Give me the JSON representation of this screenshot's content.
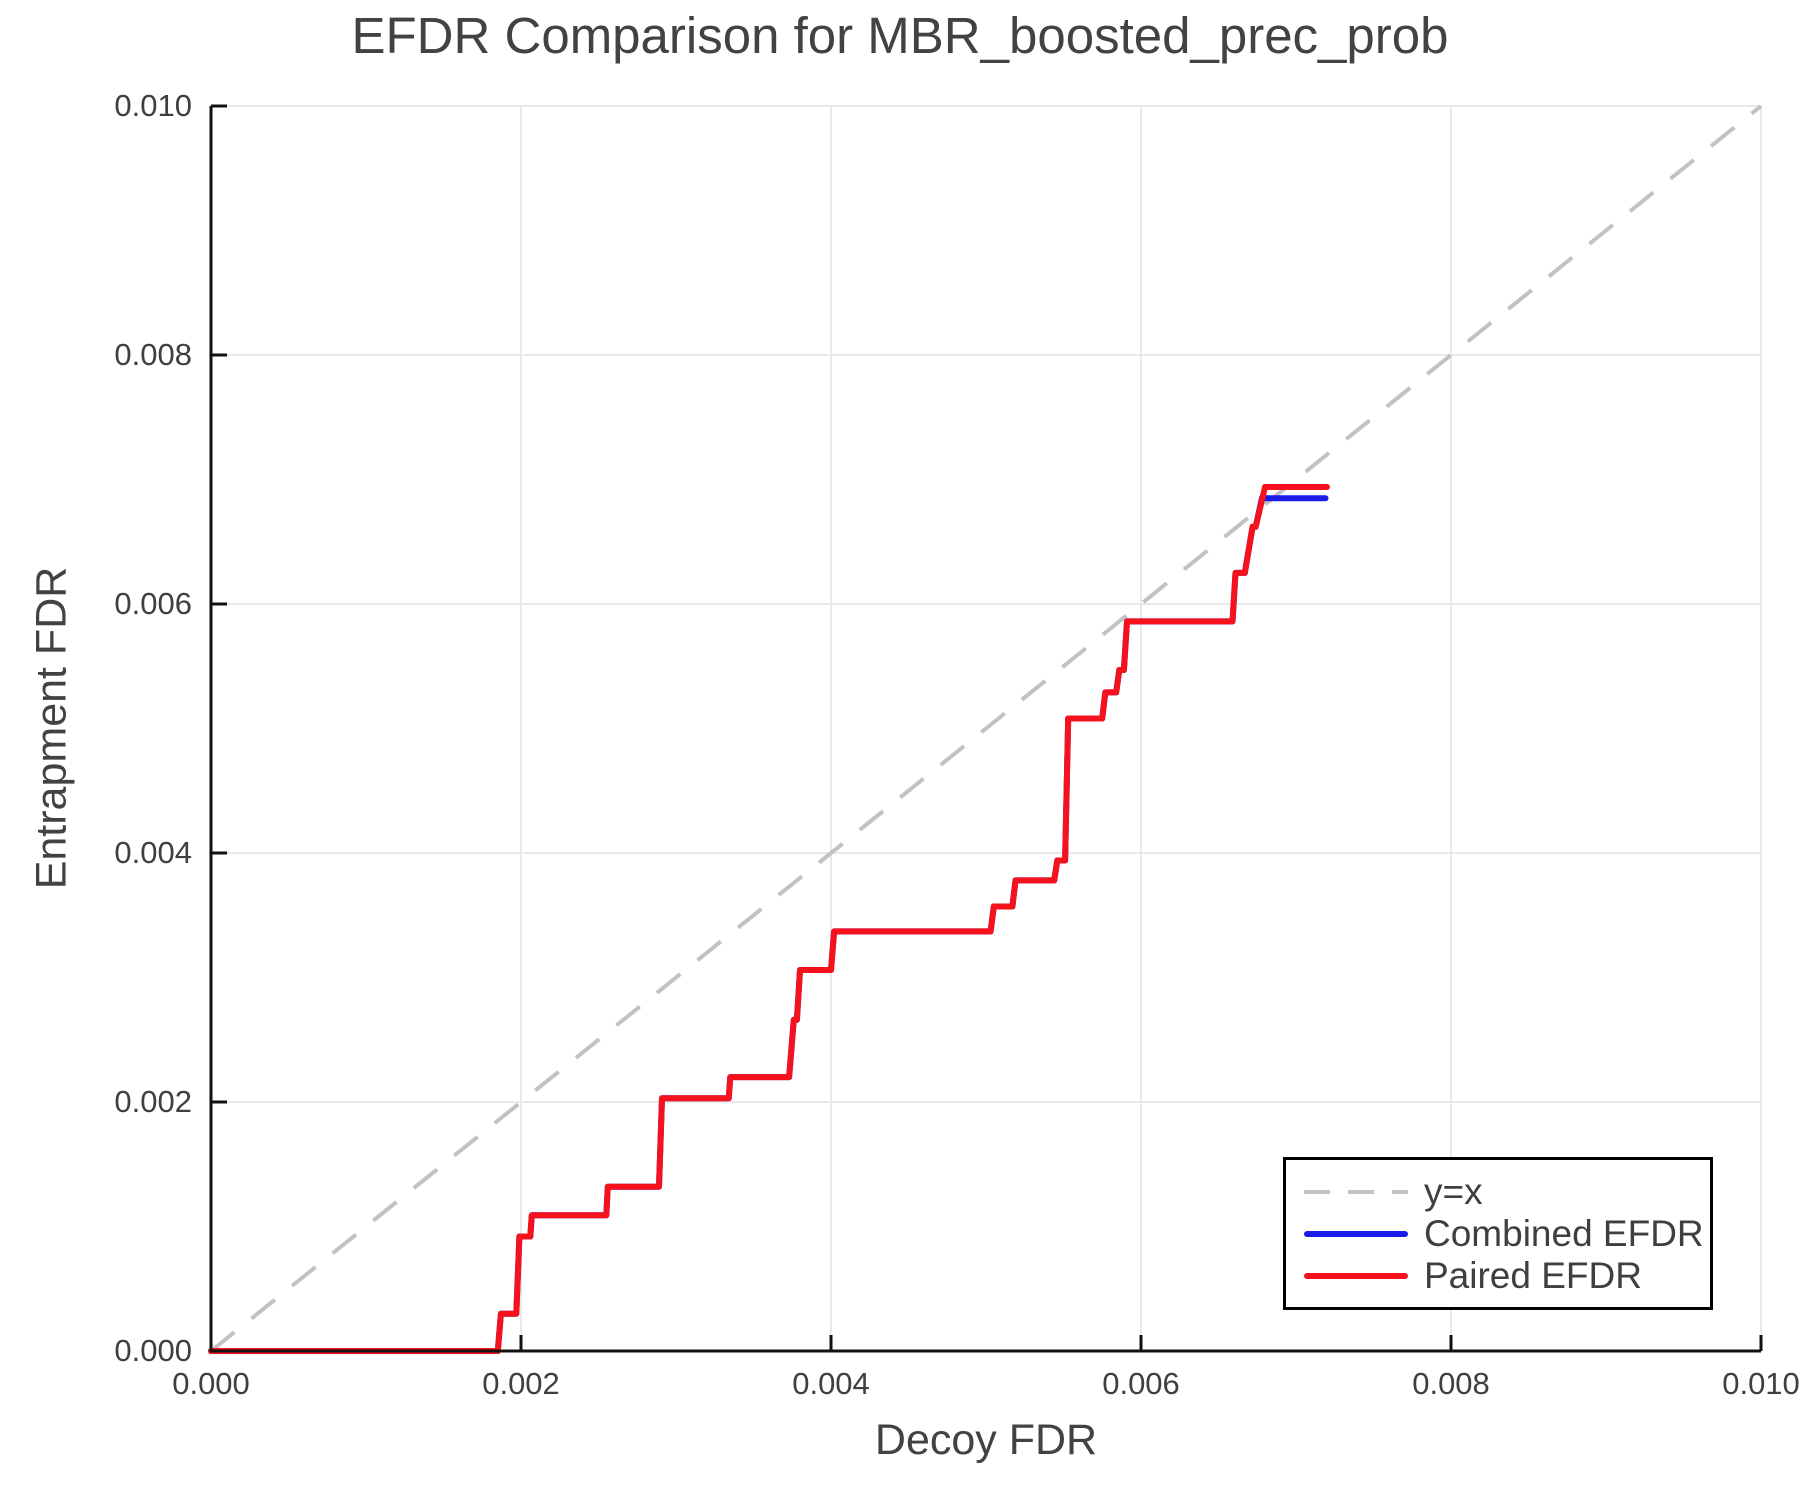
{
  "chart_data": {
    "type": "line",
    "title": "EFDR Comparison for MBR_boosted_prec_prob",
    "xlabel": "Decoy FDR",
    "ylabel": "Entrapment FDR",
    "xlim": [
      0.0,
      0.01
    ],
    "ylim": [
      0.0,
      0.01
    ],
    "grid": true,
    "legend_position": "lower right",
    "x_ticks": [
      0.0,
      0.002,
      0.004,
      0.006,
      0.008,
      0.01
    ],
    "y_ticks": [
      0.0,
      0.002,
      0.004,
      0.006,
      0.008,
      0.01
    ],
    "x_tick_labels": [
      "0.000",
      "0.002",
      "0.004",
      "0.006",
      "0.008",
      "0.010"
    ],
    "y_tick_labels": [
      "0.000",
      "0.002",
      "0.004",
      "0.006",
      "0.008",
      "0.010"
    ],
    "colors": {
      "identity_line": "#c2c2c2",
      "combined_efdr": "#1b1bea",
      "paired_efdr": "#f5121d",
      "gridline": "#e9e9e9",
      "spine": "#111111",
      "text": "#3f3f3f"
    },
    "series": [
      {
        "name": "y=x",
        "style": "dashed",
        "color": "#c2c2c2",
        "width": 4,
        "dash": "30 22",
        "points": [
          [
            0.0,
            0.0
          ],
          [
            0.01,
            0.01
          ]
        ]
      },
      {
        "name": "Combined EFDR",
        "style": "solid",
        "color": "#1b1bea",
        "width": 6,
        "dash": null,
        "points": [
          [
            0.0,
            0.0
          ],
          [
            0.00185,
            0.0
          ],
          [
            0.00187,
            0.0003
          ],
          [
            0.00197,
            0.0003
          ],
          [
            0.00199,
            0.00092
          ],
          [
            0.00206,
            0.00092
          ],
          [
            0.00207,
            0.00109
          ],
          [
            0.00255,
            0.00109
          ],
          [
            0.00256,
            0.00132
          ],
          [
            0.00289,
            0.00132
          ],
          [
            0.00291,
            0.00203
          ],
          [
            0.00334,
            0.00203
          ],
          [
            0.00335,
            0.0022
          ],
          [
            0.00373,
            0.0022
          ],
          [
            0.00376,
            0.00266
          ],
          [
            0.00378,
            0.00266
          ],
          [
            0.0038,
            0.00306
          ],
          [
            0.004,
            0.00306
          ],
          [
            0.00402,
            0.00337
          ],
          [
            0.00503,
            0.00337
          ],
          [
            0.00505,
            0.00357
          ],
          [
            0.00517,
            0.00357
          ],
          [
            0.00519,
            0.00378
          ],
          [
            0.00544,
            0.00378
          ],
          [
            0.00546,
            0.00394
          ],
          [
            0.00551,
            0.00394
          ],
          [
            0.00553,
            0.00508
          ],
          [
            0.00575,
            0.00508
          ],
          [
            0.00577,
            0.00529
          ],
          [
            0.00584,
            0.00529
          ],
          [
            0.00586,
            0.00547
          ],
          [
            0.00589,
            0.00547
          ],
          [
            0.00591,
            0.00586
          ],
          [
            0.00659,
            0.00586
          ],
          [
            0.00661,
            0.00625
          ],
          [
            0.00667,
            0.00625
          ],
          [
            0.00672,
            0.00662
          ],
          [
            0.00674,
            0.00662
          ],
          [
            0.00678,
            0.00685
          ],
          [
            0.00719,
            0.00685
          ]
        ]
      },
      {
        "name": "Paired EFDR",
        "style": "solid",
        "color": "#f5121d",
        "width": 6,
        "dash": null,
        "points": [
          [
            0.0,
            0.0
          ],
          [
            0.00185,
            0.0
          ],
          [
            0.00187,
            0.0003
          ],
          [
            0.00197,
            0.0003
          ],
          [
            0.00199,
            0.00092
          ],
          [
            0.00206,
            0.00092
          ],
          [
            0.00207,
            0.00109
          ],
          [
            0.00255,
            0.00109
          ],
          [
            0.00256,
            0.00132
          ],
          [
            0.00289,
            0.00132
          ],
          [
            0.00291,
            0.00203
          ],
          [
            0.00334,
            0.00203
          ],
          [
            0.00335,
            0.0022
          ],
          [
            0.00373,
            0.0022
          ],
          [
            0.00376,
            0.00266
          ],
          [
            0.00378,
            0.00266
          ],
          [
            0.0038,
            0.00306
          ],
          [
            0.004,
            0.00306
          ],
          [
            0.00402,
            0.00337
          ],
          [
            0.00503,
            0.00337
          ],
          [
            0.00505,
            0.00357
          ],
          [
            0.00517,
            0.00357
          ],
          [
            0.00519,
            0.00378
          ],
          [
            0.00544,
            0.00378
          ],
          [
            0.00546,
            0.00394
          ],
          [
            0.00551,
            0.00394
          ],
          [
            0.00553,
            0.00508
          ],
          [
            0.00575,
            0.00508
          ],
          [
            0.00577,
            0.00529
          ],
          [
            0.00584,
            0.00529
          ],
          [
            0.00586,
            0.00547
          ],
          [
            0.00589,
            0.00547
          ],
          [
            0.00591,
            0.00586
          ],
          [
            0.00659,
            0.00586
          ],
          [
            0.00661,
            0.00625
          ],
          [
            0.00667,
            0.00625
          ],
          [
            0.00672,
            0.00662
          ],
          [
            0.00674,
            0.00662
          ],
          [
            0.0068,
            0.00694
          ],
          [
            0.0072,
            0.00694
          ]
        ]
      }
    ]
  },
  "legend": {
    "items": [
      {
        "label": "y=x"
      },
      {
        "label": "Combined EFDR"
      },
      {
        "label": "Paired EFDR"
      }
    ]
  }
}
